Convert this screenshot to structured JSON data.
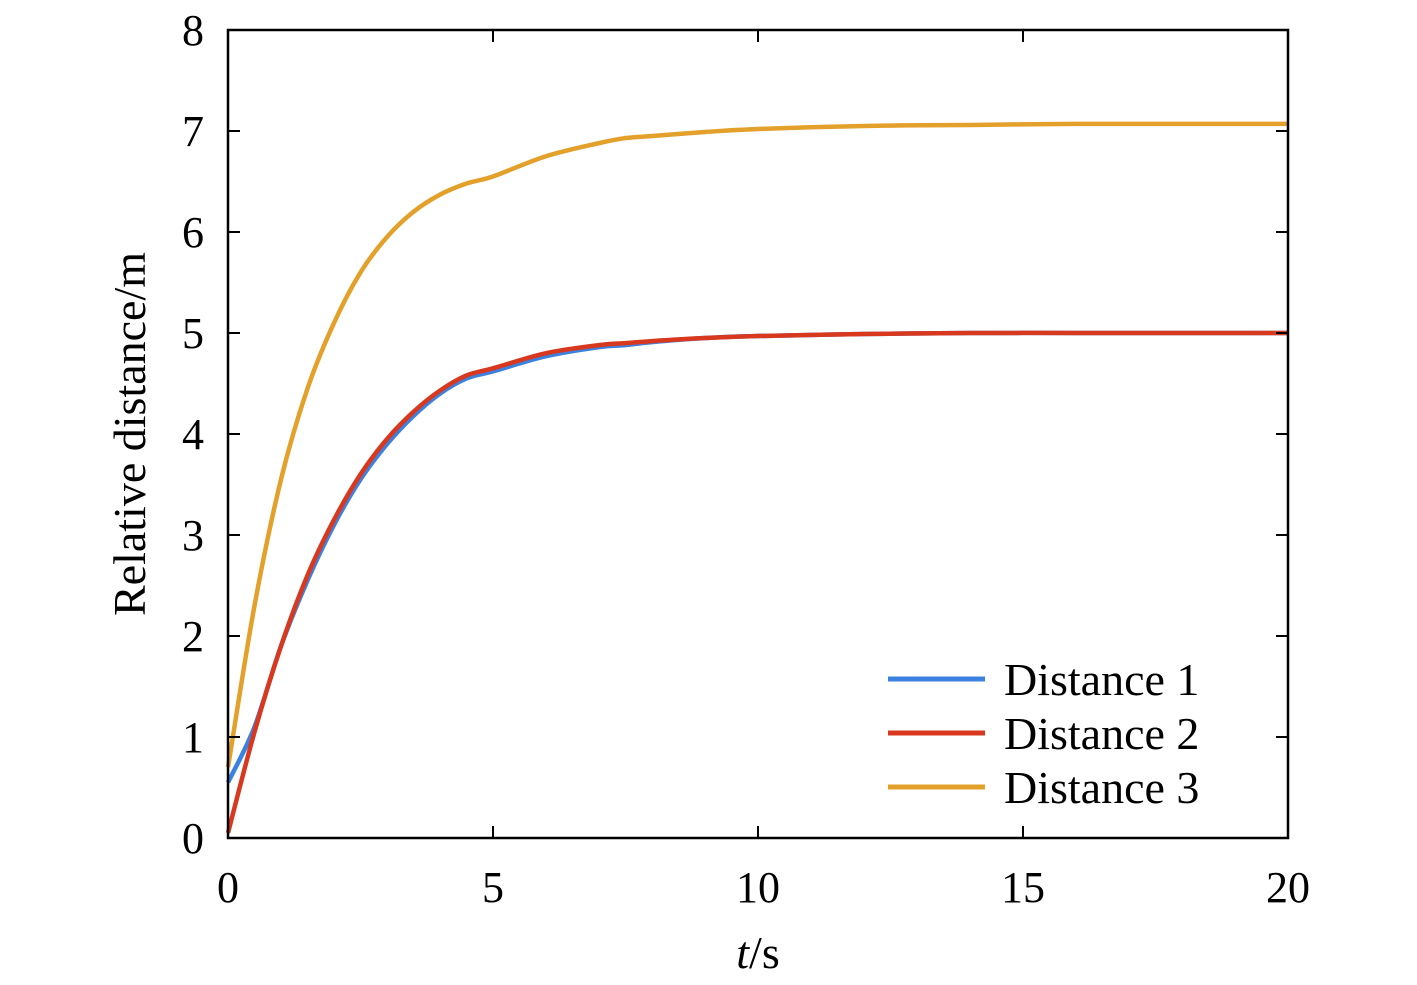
{
  "chart_data": {
    "type": "line",
    "title": "",
    "xlabel_italic": "t",
    "xlabel_unit": "/s",
    "ylabel": "Relative distance/m",
    "xlim": [
      0,
      20
    ],
    "ylim": [
      0,
      8
    ],
    "xticks": [
      0,
      5,
      10,
      15,
      20
    ],
    "yticks": [
      0,
      1,
      2,
      3,
      4,
      5,
      6,
      7,
      8
    ],
    "grid": false,
    "legend_position": "bottom-right",
    "x": [
      0,
      0.5,
      1,
      1.5,
      2,
      2.5,
      3,
      3.5,
      4,
      4.5,
      5,
      6,
      7,
      7.5,
      8,
      9,
      10,
      12,
      14,
      16,
      18,
      20
    ],
    "series": [
      {
        "name": "Distance 1",
        "color": "#3B82E0",
        "values": [
          0.55,
          1.1,
          1.9,
          2.55,
          3.1,
          3.55,
          3.9,
          4.18,
          4.4,
          4.55,
          4.62,
          4.77,
          4.86,
          4.88,
          4.91,
          4.95,
          4.97,
          4.99,
          5.0,
          5.0,
          5.0,
          5.0
        ]
      },
      {
        "name": "Distance 2",
        "color": "#D8381E",
        "values": [
          0.05,
          1.05,
          1.9,
          2.6,
          3.15,
          3.6,
          3.95,
          4.22,
          4.43,
          4.58,
          4.65,
          4.8,
          4.88,
          4.9,
          4.92,
          4.95,
          4.97,
          4.99,
          5.0,
          5.0,
          5.0,
          5.0
        ]
      },
      {
        "name": "Distance 3",
        "color": "#E3A02A",
        "values": [
          0.7,
          2.3,
          3.55,
          4.45,
          5.1,
          5.6,
          5.95,
          6.2,
          6.37,
          6.48,
          6.55,
          6.75,
          6.88,
          6.93,
          6.95,
          6.99,
          7.02,
          7.05,
          7.06,
          7.07,
          7.07,
          7.07
        ]
      }
    ]
  }
}
